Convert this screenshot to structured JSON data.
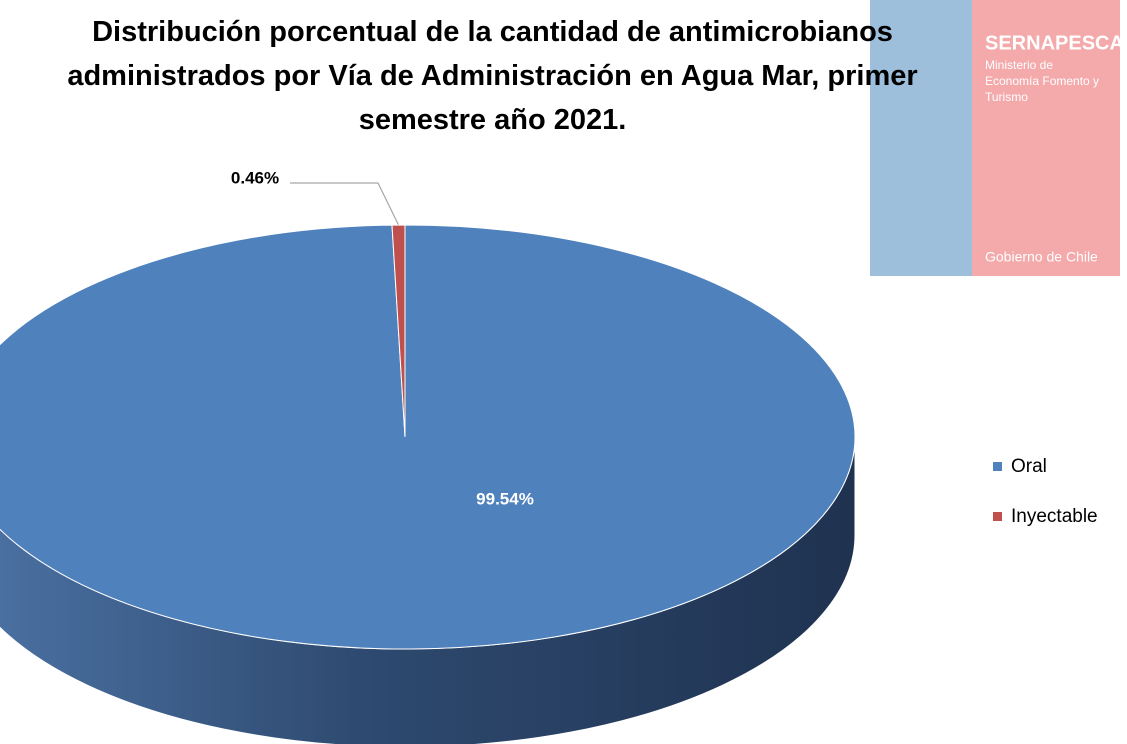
{
  "chart_data": {
    "type": "pie",
    "title": "Distribución porcentual de la cantidad de antimicrobianos administrados por Vía de Administración en Agua Mar, primer semestre año 2021.",
    "categories": [
      "Oral",
      "Inyectable"
    ],
    "values": [
      99.54,
      0.46
    ],
    "value_labels": [
      "99.54%",
      "0.46%"
    ],
    "colors": [
      "#4f81bd",
      "#c0504d"
    ],
    "legend": "right"
  },
  "logo": {
    "name": "SERNAPESCA",
    "subtitle": [
      "Ministerio de",
      "Economía Fomento y",
      "Turismo"
    ],
    "footer": "Gobierno de Chile"
  }
}
